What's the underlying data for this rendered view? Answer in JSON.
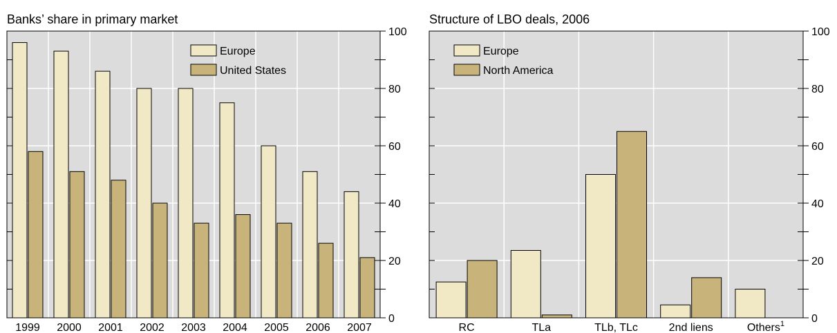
{
  "colors": {
    "background": "#dcdcdc",
    "europe": "#f1e8c6",
    "second_series": "#c8b47a",
    "grid": "#ffffff",
    "stroke": "#000000"
  },
  "chart_data": [
    {
      "type": "bar",
      "title": "Banks’ share in primary market",
      "categories": [
        "1999",
        "2000",
        "2001",
        "2002",
        "2003",
        "2004",
        "2005",
        "2006",
        "2007"
      ],
      "series": [
        {
          "name": "Europe",
          "values": [
            96,
            93,
            86,
            80,
            80,
            75,
            60,
            51,
            44
          ]
        },
        {
          "name": "United States",
          "values": [
            58,
            51,
            48,
            40,
            33,
            36,
            33,
            26,
            21
          ]
        }
      ],
      "ylim": [
        0,
        100
      ],
      "yticks": [
        0,
        20,
        40,
        60,
        80,
        100
      ],
      "grid": true,
      "legend": "top-right",
      "xlabel": "",
      "ylabel": ""
    },
    {
      "type": "bar",
      "title": "Structure of LBO deals, 2006",
      "categories": [
        "RC",
        "TLa",
        "TLb, TLc",
        "2nd liens",
        "Others"
      ],
      "category_superscripts": [
        "",
        "",
        "",
        "",
        "1"
      ],
      "series": [
        {
          "name": "Europe",
          "values": [
            12.5,
            23.5,
            50,
            4.5,
            10
          ]
        },
        {
          "name": "North America",
          "values": [
            20,
            1,
            65,
            14,
            0
          ]
        }
      ],
      "ylim": [
        0,
        100
      ],
      "yticks": [
        0,
        20,
        40,
        60,
        80,
        100
      ],
      "grid": true,
      "legend": "top-left",
      "xlabel": "",
      "ylabel": ""
    }
  ]
}
